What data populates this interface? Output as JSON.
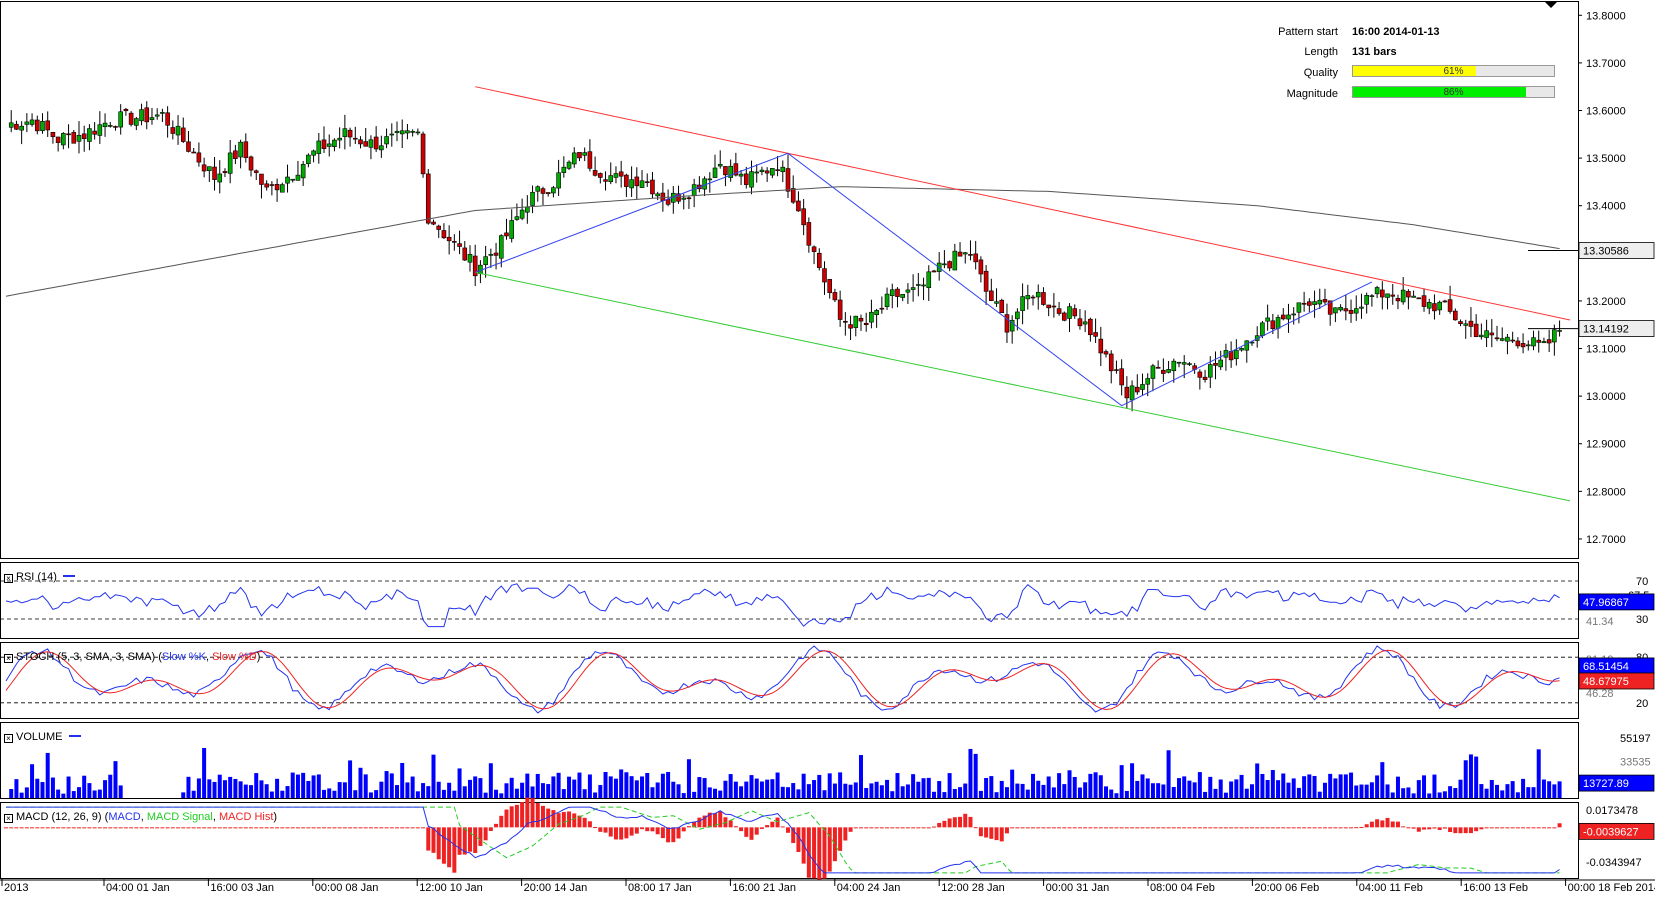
{
  "info_panel": {
    "pattern_start_label": "Pattern start",
    "pattern_start_value": "16:00 2014-01-13",
    "length_label": "Length",
    "length_value": "131 bars",
    "quality_label": "Quality",
    "quality_value": "61%",
    "quality_fraction": 0.61,
    "quality_color": "#ffff00",
    "magnitude_label": "Magnitude",
    "magnitude_value": "86%",
    "magnitude_fraction": 0.86,
    "magnitude_color": "#00ee00"
  },
  "panes": {
    "rsi_label": "RSI (14)",
    "stoch_label_prefix": "STOCH (5, 3, SMA, 3, SMA)",
    "stoch_k_label": "Slow %K",
    "stoch_d_label": "Slow %D",
    "volume_label": "VOLUME",
    "macd_label_prefix": "MACD (12, 26, 9)",
    "macd_line_label": "MACD",
    "macd_signal_label": "MACD Signal",
    "macd_hist_label": "MACD Hist"
  },
  "colors": {
    "up_candle": "#00aa00",
    "down_candle": "#cc0000",
    "resistance": "#ff3333",
    "support": "#33cc33",
    "zigzag": "#3344ee",
    "moving_average": "#555555",
    "indicator_blue": "#2233ee",
    "indicator_red": "#ee2222",
    "macd_signal": "#22cc22",
    "tag_blue": "#0000ff"
  },
  "chart_data": [
    {
      "type": "candlestick",
      "pane": "price",
      "y_range": [
        12.66,
        13.83
      ],
      "y_ticks": [
        "13.8000",
        "13.7000",
        "13.6000",
        "13.5000",
        "13.4000",
        "13.3000",
        "13.2000",
        "13.1000",
        "13.0000",
        "12.9000",
        "12.8000",
        "12.7000"
      ],
      "x_ticks": [
        "2013",
        "04:00 01 Jan",
        "16:00 03 Jan",
        "00:00 08 Jan",
        "12:00 10 Jan",
        "20:00 14 Jan",
        "08:00 17 Jan",
        "16:00 21 Jan",
        "04:00 24 Jan",
        "12:00 28 Jan",
        "00:00 31 Jan",
        "08:00 04 Feb",
        "20:00 06 Feb",
        "04:00 11 Feb",
        "16:00 13 Feb",
        "00:00 18 Feb 2014"
      ],
      "ma_value_tag": "13.30586",
      "last_price_tag": "13.14192",
      "close_anchors": [
        [
          0,
          13.57
        ],
        [
          5,
          13.58
        ],
        [
          10,
          13.54
        ],
        [
          15,
          13.55
        ],
        [
          20,
          13.58
        ],
        [
          30,
          13.59
        ],
        [
          36,
          13.51
        ],
        [
          40,
          13.46
        ],
        [
          45,
          13.52
        ],
        [
          50,
          13.43
        ],
        [
          55,
          13.47
        ],
        [
          60,
          13.52
        ],
        [
          65,
          13.55
        ],
        [
          70,
          13.53
        ],
        [
          75,
          13.54
        ],
        [
          79,
          13.55
        ],
        [
          81,
          13.38
        ],
        [
          85,
          13.33
        ],
        [
          90,
          13.27
        ],
        [
          95,
          13.32
        ],
        [
          100,
          13.41
        ],
        [
          105,
          13.45
        ],
        [
          110,
          13.51
        ],
        [
          113,
          13.48
        ],
        [
          118,
          13.45
        ],
        [
          122,
          13.46
        ],
        [
          127,
          13.41
        ],
        [
          132,
          13.44
        ],
        [
          137,
          13.49
        ],
        [
          142,
          13.45
        ],
        [
          148,
          13.49
        ],
        [
          152,
          13.4
        ],
        [
          155,
          13.3
        ],
        [
          160,
          13.16
        ],
        [
          165,
          13.15
        ],
        [
          170,
          13.21
        ],
        [
          175,
          13.22
        ],
        [
          180,
          13.28
        ],
        [
          185,
          13.3
        ],
        [
          188,
          13.22
        ],
        [
          192,
          13.15
        ],
        [
          197,
          13.22
        ],
        [
          202,
          13.18
        ],
        [
          207,
          13.16
        ],
        [
          212,
          13.06
        ],
        [
          215,
          13.0
        ],
        [
          220,
          13.05
        ],
        [
          225,
          13.08
        ],
        [
          230,
          13.05
        ],
        [
          235,
          13.09
        ],
        [
          240,
          13.14
        ],
        [
          245,
          13.17
        ],
        [
          250,
          13.2
        ],
        [
          255,
          13.17
        ],
        [
          260,
          13.2
        ],
        [
          265,
          13.22
        ],
        [
          270,
          13.2
        ],
        [
          275,
          13.19
        ],
        [
          280,
          13.15
        ],
        [
          285,
          13.12
        ],
        [
          290,
          13.12
        ],
        [
          295,
          13.1
        ],
        [
          298,
          13.14
        ]
      ],
      "ma_anchors": [
        [
          0,
          13.21
        ],
        [
          50,
          13.31
        ],
        [
          90,
          13.39
        ],
        [
          130,
          13.42
        ],
        [
          160,
          13.44
        ],
        [
          200,
          13.43
        ],
        [
          240,
          13.4
        ],
        [
          270,
          13.36
        ],
        [
          298,
          13.31
        ]
      ],
      "resistance_line": {
        "from": [
          90,
          13.65
        ],
        "to": [
          300,
          13.16
        ]
      },
      "support_line": {
        "from": [
          90,
          13.26
        ],
        "to": [
          300,
          12.78
        ]
      },
      "zigzag": [
        [
          90,
          13.26
        ],
        [
          150,
          13.51
        ],
        [
          214,
          12.98
        ],
        [
          262,
          13.24
        ]
      ]
    },
    {
      "type": "line",
      "pane": "rsi",
      "name": "RSI (14)",
      "y_range": [
        20,
        80
      ],
      "levels": [
        70,
        30
      ],
      "tick_labels": [
        "70",
        "67.5",
        "30",
        "41.34"
      ],
      "value_tag": "47.96867"
    },
    {
      "type": "line",
      "pane": "stochastic",
      "name": "STOCH (5, 3, SMA, 3, SMA)",
      "series": [
        {
          "name": "Slow %K"
        },
        {
          "name": "Slow %D"
        }
      ],
      "levels": [
        80,
        20
      ],
      "tick_labels": [
        "80",
        "91.19",
        "20",
        "46.28"
      ],
      "value_tags": [
        "68.51454",
        "48.67975"
      ]
    },
    {
      "type": "bar",
      "pane": "volume",
      "name": "VOLUME",
      "tick_labels": [
        "55197",
        "33535"
      ],
      "value_tag": "13727.89"
    },
    {
      "type": "line",
      "pane": "macd",
      "name": "MACD (12, 26, 9)",
      "series": [
        {
          "name": "MACD"
        },
        {
          "name": "MACD Signal"
        },
        {
          "name": "MACD Hist"
        }
      ],
      "tick_labels": [
        "0.0173478",
        "-0.0343947"
      ],
      "value_tags": [
        "-0.0039627"
      ]
    }
  ]
}
